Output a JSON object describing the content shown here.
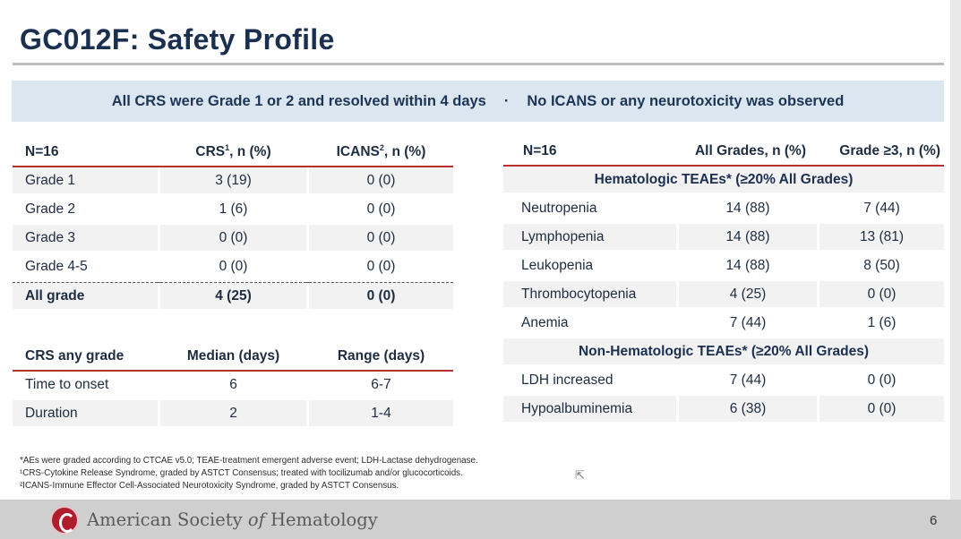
{
  "title": "GC012F: Safety Profile",
  "banner": {
    "left": "All CRS were Grade 1 or 2 and resolved within 4 days",
    "separator": "·",
    "right": "No ICANS or any neurotoxicity was observed"
  },
  "grade_table": {
    "headers": {
      "col1": "N=16",
      "col2": "CRS",
      "col2_sup": "1",
      "col2_suffix": ", n (%)",
      "col3": "ICANS",
      "col3_sup": "2",
      "col3_suffix": ", n (%)"
    },
    "rows": [
      {
        "label": "Grade 1",
        "crs": "3 (19)",
        "icans": "0 (0)"
      },
      {
        "label": "Grade 2",
        "crs": "1 (6)",
        "icans": "0 (0)"
      },
      {
        "label": "Grade 3",
        "crs": "0 (0)",
        "icans": "0 (0)"
      },
      {
        "label": "Grade 4-5",
        "crs": "0 (0)",
        "icans": "0 (0)"
      },
      {
        "label": "All grade",
        "crs": "4 (25)",
        "icans": "0 (0)"
      }
    ]
  },
  "crs_table": {
    "headers": {
      "col1": "CRS any grade",
      "col2": "Median (days)",
      "col3": "Range (days)"
    },
    "rows": [
      {
        "label": "Time to onset",
        "median": "6",
        "range": "6-7"
      },
      {
        "label": "Duration",
        "median": "2",
        "range": "1-4"
      }
    ]
  },
  "teae_table": {
    "headers": {
      "col1": "N=16",
      "col2": "All Grades, n (%)",
      "col3": "Grade ≥3, n (%)"
    },
    "hematologic_title": "Hematologic TEAEs* (≥20% All Grades)",
    "hematologic": [
      {
        "label": "Neutropenia",
        "all": "14 (88)",
        "g3": "7 (44)"
      },
      {
        "label": "Lymphopenia",
        "all": "14 (88)",
        "g3": "13 (81)"
      },
      {
        "label": "Leukopenia",
        "all": "14 (88)",
        "g3": "8 (50)"
      },
      {
        "label": "Thrombocytopenia",
        "all": "4 (25)",
        "g3": "0 (0)"
      },
      {
        "label": "Anemia",
        "all": "7 (44)",
        "g3": "1 (6)"
      }
    ],
    "nonhematologic_title": "Non-Hematologic TEAEs* (≥20% All Grades)",
    "nonhematologic": [
      {
        "label": "LDH increased",
        "all": "7 (44)",
        "g3": "0 (0)"
      },
      {
        "label": "Hypoalbuminemia",
        "all": "6 (38)",
        "g3": "0 (0)"
      }
    ]
  },
  "footnotes": [
    "*AEs were graded according to CTCAE v5.0; TEAE-treatment emergent adverse event; LDH-Lactase dehydrogenase.",
    "¹CRS-Cytokine Release Syndrome, graded by ASTCT Consensus; treated with tocilizumab and/or glucocorticoids.",
    "²ICANS-Immune Effector Cell-Associated Neurotoxicity Syndrome, graded by ASTCT Consensus."
  ],
  "footer": {
    "org_a": "American Society ",
    "org_b": "of",
    "org_c": " Hematology",
    "page": "6"
  }
}
